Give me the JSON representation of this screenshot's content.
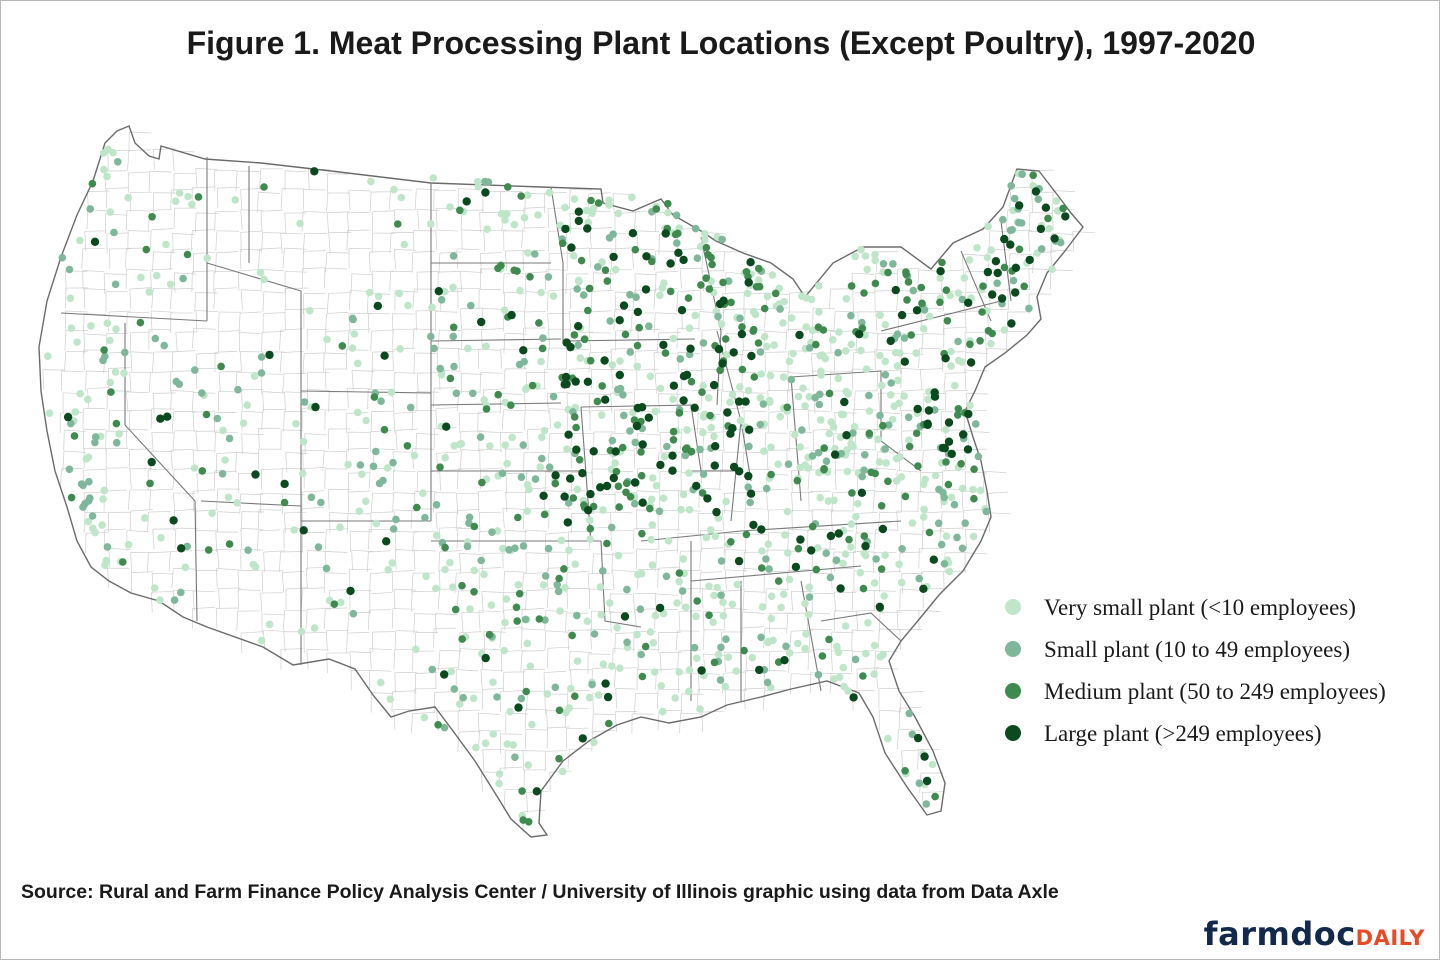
{
  "title": "Figure 1. Meat Processing Plant Locations (Except Poultry), 1997-2020",
  "legend": [
    {
      "label": "Very small plant (<10 employees)",
      "color": "#bfe6c9"
    },
    {
      "label": "Small plant (10 to 49 employees)",
      "color": "#7fb79a"
    },
    {
      "label": "Medium plant (50 to 249 employees)",
      "color": "#3e8a4f"
    },
    {
      "label": "Large plant (>249 employees)",
      "color": "#0b4a1f"
    }
  ],
  "source": "Source: Rural and Farm Finance Policy Analysis Center / University of Illinois graphic using data from Data Axle",
  "brand": {
    "main": "farmdoc",
    "accent": "DAILY",
    "main_color": "#13294b",
    "accent_color": "#e84a27"
  },
  "map": {
    "content": "contiguous United States with state and county boundaries",
    "point_density": [
      {
        "region": "west",
        "level": "sparse"
      },
      {
        "region": "pacific-coast",
        "level": "moderate"
      },
      {
        "region": "great-plains",
        "level": "moderate"
      },
      {
        "region": "midwest",
        "level": "dense"
      },
      {
        "region": "northeast",
        "level": "dense"
      },
      {
        "region": "southeast",
        "level": "moderate"
      },
      {
        "region": "texas",
        "level": "moderate"
      }
    ]
  }
}
